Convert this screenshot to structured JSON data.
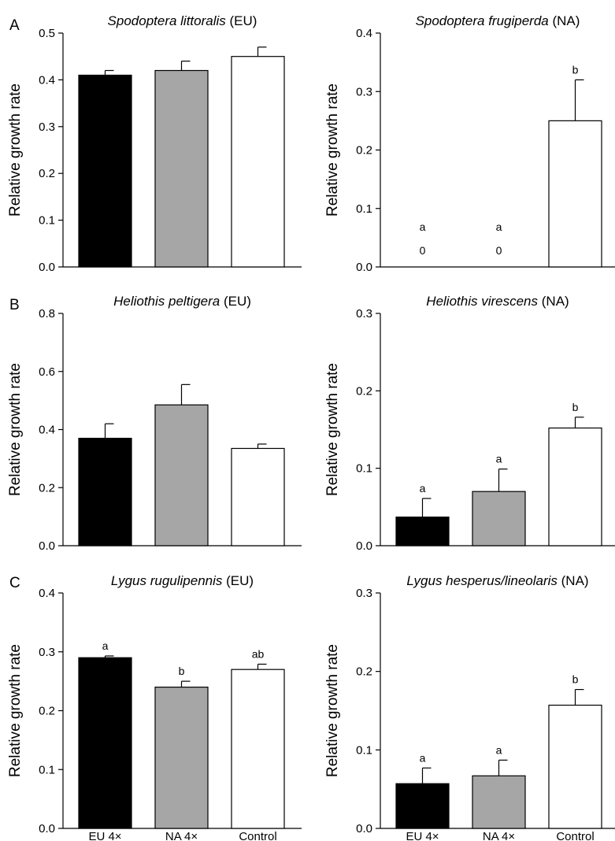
{
  "figure": {
    "panel_letters": [
      "A",
      "B",
      "C"
    ],
    "x_tick_labels": [
      "EU 4×",
      "NA 4×",
      "Control"
    ]
  },
  "colors": {
    "bar_fills": [
      "#000000",
      "#a6a6a6",
      "#ffffff"
    ],
    "stroke": "#000000"
  },
  "chart_data": [
    {
      "type": "bar",
      "panel_letter": "A",
      "title_species": "Spodoptera littoralis",
      "title_region": "(EU)",
      "ylabel": "Relative growth rate",
      "categories": [
        "EU 4×",
        "NA 4×",
        "Control"
      ],
      "values": [
        0.41,
        0.42,
        0.45
      ],
      "errors": [
        0.01,
        0.02,
        0.02
      ],
      "letters": [
        "",
        "",
        ""
      ],
      "value_labels": [
        "",
        "",
        ""
      ],
      "ylim": [
        0,
        0.5
      ],
      "yticks": [
        0.0,
        0.1,
        0.2,
        0.3,
        0.4,
        0.5
      ],
      "yticklabels": [
        "0.0",
        "0.1",
        "0.2",
        "0.3",
        "0.4",
        "0.5"
      ],
      "show_xticklabels": false
    },
    {
      "type": "bar",
      "panel_letter": "",
      "title_species": "Spodoptera frugiperda",
      "title_region": "(NA)",
      "ylabel": "Relative growth rate",
      "categories": [
        "EU 4×",
        "NA 4×",
        "Control"
      ],
      "values": [
        0,
        0,
        0.25
      ],
      "errors": [
        0,
        0,
        0.07
      ],
      "letters": [
        "a",
        "a",
        "b"
      ],
      "value_labels": [
        "0",
        "0",
        ""
      ],
      "ylim": [
        0,
        0.4
      ],
      "yticks": [
        0.0,
        0.1,
        0.2,
        0.3,
        0.4
      ],
      "yticklabels": [
        "0.0",
        "0.1",
        "0.2",
        "0.3",
        "0.4"
      ],
      "show_xticklabels": false
    },
    {
      "type": "bar",
      "panel_letter": "B",
      "title_species": "Heliothis peltigera",
      "title_region": "(EU)",
      "ylabel": "Relative growth rate",
      "categories": [
        "EU 4×",
        "NA 4×",
        "Control"
      ],
      "values": [
        0.37,
        0.485,
        0.335
      ],
      "errors": [
        0.05,
        0.07,
        0.015
      ],
      "letters": [
        "",
        "",
        ""
      ],
      "value_labels": [
        "",
        "",
        ""
      ],
      "ylim": [
        0,
        0.8
      ],
      "yticks": [
        0.0,
        0.2,
        0.4,
        0.6,
        0.8
      ],
      "yticklabels": [
        "0.0",
        "0.2",
        "0.4",
        "0.6",
        "0.8"
      ],
      "show_xticklabels": false
    },
    {
      "type": "bar",
      "panel_letter": "",
      "title_species": "Heliothis virescens",
      "title_region": "(NA)",
      "ylabel": "Relative growth rate",
      "categories": [
        "EU 4×",
        "NA 4×",
        "Control"
      ],
      "values": [
        0.037,
        0.07,
        0.152
      ],
      "errors": [
        0.024,
        0.029,
        0.014
      ],
      "letters": [
        "a",
        "a",
        "b"
      ],
      "value_labels": [
        "",
        "",
        ""
      ],
      "ylim": [
        0,
        0.3
      ],
      "yticks": [
        0.0,
        0.1,
        0.2,
        0.3
      ],
      "yticklabels": [
        "0.0",
        "0.1",
        "0.2",
        "0.3"
      ],
      "show_xticklabels": false
    },
    {
      "type": "bar",
      "panel_letter": "C",
      "title_species": "Lygus rugulipennis",
      "title_region": "(EU)",
      "ylabel": "Relative growth rate",
      "categories": [
        "EU 4×",
        "NA 4×",
        "Control"
      ],
      "values": [
        0.29,
        0.24,
        0.27
      ],
      "errors": [
        0.003,
        0.01,
        0.009
      ],
      "letters": [
        "a",
        "b",
        "ab"
      ],
      "value_labels": [
        "",
        "",
        ""
      ],
      "ylim": [
        0,
        0.4
      ],
      "yticks": [
        0.0,
        0.1,
        0.2,
        0.3,
        0.4
      ],
      "yticklabels": [
        "0.0",
        "0.1",
        "0.2",
        "0.3",
        "0.4"
      ],
      "show_xticklabels": true
    },
    {
      "type": "bar",
      "panel_letter": "",
      "title_species": "Lygus hesperus/lineolaris",
      "title_region": "(NA)",
      "ylabel": "Relative growth rate",
      "categories": [
        "EU 4×",
        "NA 4×",
        "Control"
      ],
      "values": [
        0.057,
        0.067,
        0.157
      ],
      "errors": [
        0.02,
        0.02,
        0.02
      ],
      "letters": [
        "a",
        "a",
        "b"
      ],
      "value_labels": [
        "",
        "",
        ""
      ],
      "ylim": [
        0,
        0.3
      ],
      "yticks": [
        0.0,
        0.1,
        0.2,
        0.3
      ],
      "yticklabels": [
        "0.0",
        "0.1",
        "0.2",
        "0.3"
      ],
      "show_xticklabels": true
    }
  ]
}
